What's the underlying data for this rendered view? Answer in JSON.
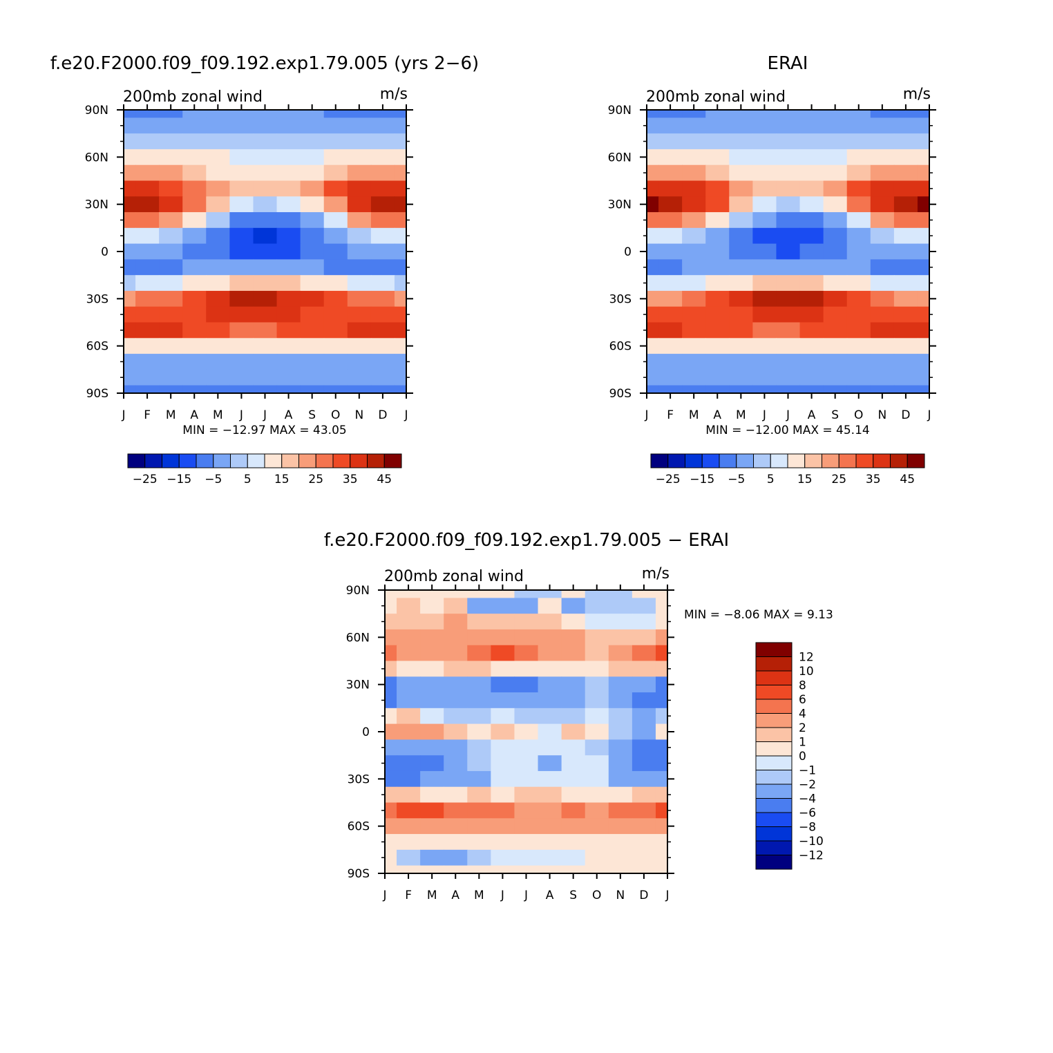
{
  "figure": {
    "panels": [
      {
        "id": "model",
        "title": "f.e20.F2000.f09_f09.192.exp1.79.005 (yrs 2−6)",
        "left_label": "200mb zonal wind",
        "right_label": "m/s",
        "stats_text": "MIN = −12.97 MAX =   43.05"
      },
      {
        "id": "obs",
        "title": "ERAI",
        "left_label": "200mb zonal wind",
        "right_label": "m/s",
        "stats_text": "MIN = −12.00 MAX =   45.14"
      },
      {
        "id": "diff",
        "title": "f.e20.F2000.f09_f09.192.exp1.79.005 − ERAI",
        "left_label": "200mb zonal wind",
        "right_label": "m/s",
        "stats_text": "MIN =   −8.06 MAX =     9.13"
      }
    ]
  },
  "chart_data": [
    {
      "type": "heatmap",
      "title": "f.e20.F2000.f09_f09.192.exp1.79.005 (yrs 2−6)",
      "variable": "200mb zonal wind",
      "units": "m/s",
      "x_ticks": [
        "J",
        "F",
        "M",
        "A",
        "M",
        "J",
        "J",
        "A",
        "S",
        "O",
        "N",
        "D",
        "J"
      ],
      "y_ticks": [
        "90N",
        "60N",
        "30N",
        "0",
        "30S",
        "60S",
        "90S"
      ],
      "ylim": [
        -90,
        90
      ],
      "colorbar": {
        "orientation": "horizontal",
        "levels": [
          -30,
          -25,
          -20,
          -15,
          -10,
          -5,
          0,
          5,
          10,
          15,
          20,
          25,
          30,
          35,
          40,
          45,
          50
        ],
        "tick_labels": [
          "−25",
          "−15",
          "−5",
          "5",
          "15",
          "25",
          "35",
          "45"
        ],
        "colors": [
          "#00007f",
          "#0018b0",
          "#0035d8",
          "#1a4cf2",
          "#4a7df0",
          "#7aa6f5",
          "#aecaf8",
          "#d8e8fc",
          "#fde6d6",
          "#fbc3a6",
          "#f89d79",
          "#f4744f",
          "#ef4a25",
          "#dc3314",
          "#b52006",
          "#800000"
        ]
      },
      "min": -12.97,
      "max": 43.05,
      "lat": [
        90,
        80,
        70,
        60,
        50,
        40,
        30,
        20,
        10,
        0,
        -10,
        -20,
        -30,
        -40,
        -50,
        -60,
        -70,
        -80,
        -90
      ],
      "values": [
        [
          -7,
          -7,
          -6,
          -5,
          -5,
          -4,
          -4,
          -4,
          -5,
          -6,
          -6,
          -6,
          -7
        ],
        [
          -4,
          -4,
          -4,
          -3,
          -2,
          -1,
          -2,
          -2,
          -3,
          -4,
          -4,
          -4,
          -4
        ],
        [
          0,
          1,
          1,
          1,
          2,
          1,
          0,
          0,
          1,
          2,
          1,
          1,
          0
        ],
        [
          13,
          13,
          12,
          11,
          10,
          7,
          5,
          5,
          7,
          10,
          12,
          13,
          14
        ],
        [
          22,
          22,
          20,
          17,
          14,
          11,
          10,
          11,
          14,
          19,
          22,
          22,
          23
        ],
        [
          37,
          36,
          34,
          29,
          22,
          17,
          15,
          17,
          22,
          30,
          35,
          37,
          38
        ],
        [
          43,
          42,
          38,
          29,
          18,
          7,
          3,
          5,
          12,
          24,
          36,
          41,
          43
        ],
        [
          28,
          27,
          22,
          13,
          1,
          -6,
          -9,
          -8,
          -2,
          9,
          20,
          26,
          28
        ],
        [
          6,
          5,
          2,
          -3,
          -9,
          -14,
          -16,
          -15,
          -10,
          -3,
          3,
          6,
          7
        ],
        [
          -2,
          -3,
          -4,
          -6,
          -9,
          -12,
          -13,
          -12,
          -9,
          -6,
          -4,
          -3,
          -2
        ],
        [
          -8,
          -7,
          -6,
          -5,
          -4,
          -3,
          -2,
          -3,
          -4,
          -6,
          -8,
          -8,
          -8
        ],
        [
          4,
          6,
          8,
          10,
          13,
          16,
          18,
          17,
          14,
          11,
          8,
          5,
          4
        ],
        [
          24,
          25,
          28,
          32,
          36,
          40,
          41,
          39,
          35,
          30,
          27,
          25,
          24
        ],
        [
          30,
          31,
          32,
          34,
          35,
          36,
          36,
          35,
          34,
          33,
          32,
          31,
          30
        ],
        [
          38,
          38,
          36,
          33,
          31,
          29,
          29,
          30,
          32,
          34,
          36,
          38,
          38
        ],
        [
          14,
          14,
          14,
          14,
          14,
          14,
          14,
          14,
          14,
          14,
          14,
          14,
          14
        ],
        [
          -2,
          -2,
          -2,
          -2,
          -2,
          -1,
          -1,
          -1,
          -2,
          -2,
          -2,
          -2,
          -2
        ],
        [
          -5,
          -5,
          -5,
          -5,
          -5,
          -5,
          -5,
          -5,
          -5,
          -5,
          -5,
          -5,
          -5
        ],
        [
          -6,
          -6,
          -6,
          -6,
          -6,
          -6,
          -6,
          -6,
          -6,
          -6,
          -6,
          -6,
          -6
        ]
      ]
    },
    {
      "type": "heatmap",
      "title": "ERAI",
      "variable": "200mb zonal wind",
      "units": "m/s",
      "x_ticks": [
        "J",
        "F",
        "M",
        "A",
        "M",
        "J",
        "J",
        "A",
        "S",
        "O",
        "N",
        "D",
        "J"
      ],
      "y_ticks": [
        "90N",
        "60N",
        "30N",
        "0",
        "30S",
        "60S",
        "90S"
      ],
      "ylim": [
        -90,
        90
      ],
      "colorbar": {
        "orientation": "horizontal",
        "levels": [
          -30,
          -25,
          -20,
          -15,
          -10,
          -5,
          0,
          5,
          10,
          15,
          20,
          25,
          30,
          35,
          40,
          45,
          50
        ],
        "tick_labels": [
          "−25",
          "−15",
          "−5",
          "5",
          "15",
          "25",
          "35",
          "45"
        ],
        "colors": [
          "#00007f",
          "#0018b0",
          "#0035d8",
          "#1a4cf2",
          "#4a7df0",
          "#7aa6f5",
          "#aecaf8",
          "#d8e8fc",
          "#fde6d6",
          "#fbc3a6",
          "#f89d79",
          "#f4744f",
          "#ef4a25",
          "#dc3314",
          "#b52006",
          "#800000"
        ]
      },
      "min": -12.0,
      "max": 45.14,
      "lat": [
        90,
        80,
        70,
        60,
        50,
        40,
        30,
        20,
        10,
        0,
        -10,
        -20,
        -30,
        -40,
        -50,
        -60,
        -70,
        -80,
        -90
      ],
      "values": [
        [
          -6,
          -6,
          -6,
          -5,
          -5,
          -5,
          -5,
          -5,
          -5,
          -5,
          -6,
          -6,
          -6
        ],
        [
          -2,
          -2,
          -2,
          -2,
          -1,
          -1,
          -1,
          -1,
          -2,
          -2,
          -2,
          -2,
          -2
        ],
        [
          2,
          2,
          2,
          2,
          2,
          1,
          1,
          1,
          2,
          2,
          2,
          2,
          2
        ],
        [
          14,
          14,
          13,
          11,
          9,
          7,
          6,
          6,
          8,
          11,
          13,
          14,
          14
        ],
        [
          22,
          22,
          20,
          17,
          14,
          11,
          10,
          11,
          14,
          19,
          22,
          22,
          23
        ],
        [
          38,
          37,
          35,
          30,
          23,
          17,
          15,
          17,
          22,
          30,
          36,
          38,
          39
        ],
        [
          45,
          44,
          39,
          30,
          18,
          7,
          3,
          5,
          12,
          25,
          37,
          42,
          45
        ],
        [
          28,
          27,
          22,
          13,
          2,
          -5,
          -8,
          -7,
          -1,
          9,
          20,
          26,
          28
        ],
        [
          7,
          6,
          3,
          -2,
          -8,
          -12,
          -14,
          -13,
          -9,
          -2,
          4,
          7,
          8
        ],
        [
          -1,
          -2,
          -3,
          -5,
          -8,
          -10,
          -11,
          -10,
          -8,
          -5,
          -3,
          -2,
          -1
        ],
        [
          -7,
          -6,
          -5,
          -4,
          -3,
          -2,
          -2,
          -2,
          -3,
          -5,
          -7,
          -7,
          -7
        ],
        [
          5,
          7,
          9,
          11,
          13,
          15,
          17,
          16,
          14,
          11,
          9,
          6,
          5
        ],
        [
          23,
          24,
          27,
          31,
          36,
          40,
          42,
          40,
          35,
          30,
          26,
          24,
          23
        ],
        [
          30,
          31,
          32,
          33,
          34,
          35,
          35,
          35,
          34,
          33,
          32,
          31,
          30
        ],
        [
          36,
          36,
          34,
          32,
          30,
          29,
          29,
          30,
          32,
          34,
          35,
          36,
          36
        ],
        [
          14,
          14,
          14,
          14,
          14,
          14,
          14,
          14,
          14,
          14,
          14,
          14,
          14
        ],
        [
          -1,
          -1,
          -1,
          -1,
          -1,
          -1,
          -1,
          -1,
          -1,
          -1,
          -1,
          -1,
          -1
        ],
        [
          -4,
          -4,
          -4,
          -4,
          -4,
          -4,
          -4,
          -4,
          -4,
          -4,
          -4,
          -4,
          -4
        ],
        [
          -6,
          -6,
          -6,
          -6,
          -6,
          -6,
          -6,
          -6,
          -6,
          -6,
          -6,
          -6,
          -6
        ]
      ]
    },
    {
      "type": "heatmap",
      "title": "f.e20.F2000.f09_f09.192.exp1.79.005 − ERAI",
      "variable": "200mb zonal wind",
      "units": "m/s",
      "x_ticks": [
        "J",
        "F",
        "M",
        "A",
        "M",
        "J",
        "J",
        "A",
        "S",
        "O",
        "N",
        "D",
        "J"
      ],
      "y_ticks": [
        "90N",
        "60N",
        "30N",
        "0",
        "30S",
        "60S",
        "90S"
      ],
      "ylim": [
        -90,
        90
      ],
      "colorbar": {
        "orientation": "vertical",
        "levels": [
          -14,
          -12,
          -10,
          -8,
          -6,
          -4,
          -2,
          -1,
          0,
          1,
          2,
          4,
          6,
          8,
          10,
          12,
          14
        ],
        "tick_labels": [
          "12",
          "10",
          "8",
          "6",
          "4",
          "2",
          "1",
          "0",
          "−1",
          "−2",
          "−4",
          "−6",
          "−8",
          "−10",
          "−12"
        ],
        "colors": [
          "#00007f",
          "#0018b0",
          "#0035d8",
          "#1a4cf2",
          "#4a7df0",
          "#7aa6f5",
          "#aecaf8",
          "#d8e8fc",
          "#fde6d6",
          "#fbc3a6",
          "#f89d79",
          "#f4744f",
          "#ef4a25",
          "#dc3314",
          "#b52006",
          "#800000"
        ]
      },
      "min": -8.06,
      "max": 9.13,
      "lat": [
        90,
        80,
        70,
        60,
        50,
        40,
        30,
        20,
        10,
        0,
        -10,
        -20,
        -30,
        -40,
        -50,
        -60,
        -70,
        -80,
        -90
      ],
      "values": [
        [
          0.5,
          0.5,
          0.5,
          0.5,
          0.5,
          0.5,
          -1.5,
          -1.5,
          0.5,
          -1.5,
          -1.5,
          0.5,
          0.5
        ],
        [
          0.5,
          1.5,
          0.5,
          1.5,
          -2.5,
          -2.5,
          -2.5,
          0.5,
          -2.5,
          -1.5,
          -1.5,
          -1.5,
          0.5
        ],
        [
          1.5,
          1.5,
          1.5,
          2.5,
          1.5,
          1.5,
          1.5,
          1.5,
          0.5,
          -0.5,
          -0.5,
          -0.5,
          0.5
        ],
        [
          3,
          3,
          3,
          3,
          3,
          3,
          3,
          3,
          2.5,
          1.5,
          1.5,
          1.5,
          3
        ],
        [
          5,
          3,
          3,
          3,
          4,
          6,
          4,
          3,
          2.5,
          1.5,
          3,
          4,
          6
        ],
        [
          1.5,
          0.5,
          0.5,
          1.5,
          1.5,
          0.5,
          0.5,
          0.5,
          0.5,
          0.5,
          1.5,
          1.5,
          1.5
        ],
        [
          -6,
          -3,
          -2.5,
          -3,
          -3,
          -6,
          -5,
          -3,
          -2.5,
          -1.5,
          -3,
          -3,
          -5
        ],
        [
          -5,
          -3,
          -2.5,
          -3,
          -3,
          -3,
          -3,
          -3,
          -2.5,
          -1.5,
          -2.5,
          -5,
          -6
        ],
        [
          0.5,
          1.5,
          -0.5,
          -1.5,
          -1.5,
          -0.5,
          -1.5,
          -1.5,
          -1.5,
          -0.5,
          -1.5,
          -3,
          -1.5
        ],
        [
          3,
          3,
          3,
          1.5,
          0.5,
          1.5,
          0.5,
          -0.5,
          1.5,
          0.5,
          -1.5,
          -3,
          0.5
        ],
        [
          -3,
          -3,
          -3,
          -2.5,
          -1.5,
          -0.5,
          -0.5,
          -0.5,
          -0.5,
          -1.5,
          -2.5,
          -5,
          -5
        ],
        [
          -5,
          -6,
          -5,
          -3,
          -1.5,
          -0.5,
          -0.5,
          -2.5,
          -0.5,
          -0.5,
          -3,
          -5,
          -5
        ],
        [
          -5,
          -5,
          -3,
          -2.5,
          -2.5,
          -0.5,
          -0.5,
          -0.5,
          -0.5,
          -0.5,
          -2.5,
          -2.5,
          -3
        ],
        [
          1.5,
          1.5,
          0.5,
          0.5,
          1.5,
          0.5,
          1.5,
          1.5,
          0.5,
          0.5,
          0.5,
          1.5,
          1.5
        ],
        [
          5,
          7,
          6,
          5,
          5,
          4,
          3,
          3,
          5,
          3,
          4,
          5,
          6
        ],
        [
          3,
          3,
          3,
          3,
          3,
          3,
          3,
          3,
          3,
          2.5,
          3,
          3,
          3
        ],
        [
          0.5,
          0.5,
          0.5,
          0.5,
          0.5,
          0.5,
          0.5,
          0.5,
          0.5,
          0.5,
          0.5,
          0.5,
          0.5
        ],
        [
          0.5,
          -1.5,
          -2.5,
          -2.5,
          -1.5,
          -0.5,
          -0.5,
          -0.5,
          -0.5,
          0.5,
          0.5,
          0.5,
          0.5
        ],
        [
          0.5,
          0.5,
          0.5,
          0.5,
          0.5,
          0.5,
          0.5,
          0.5,
          0.5,
          0.5,
          0.5,
          0.5,
          0.5
        ]
      ]
    }
  ]
}
